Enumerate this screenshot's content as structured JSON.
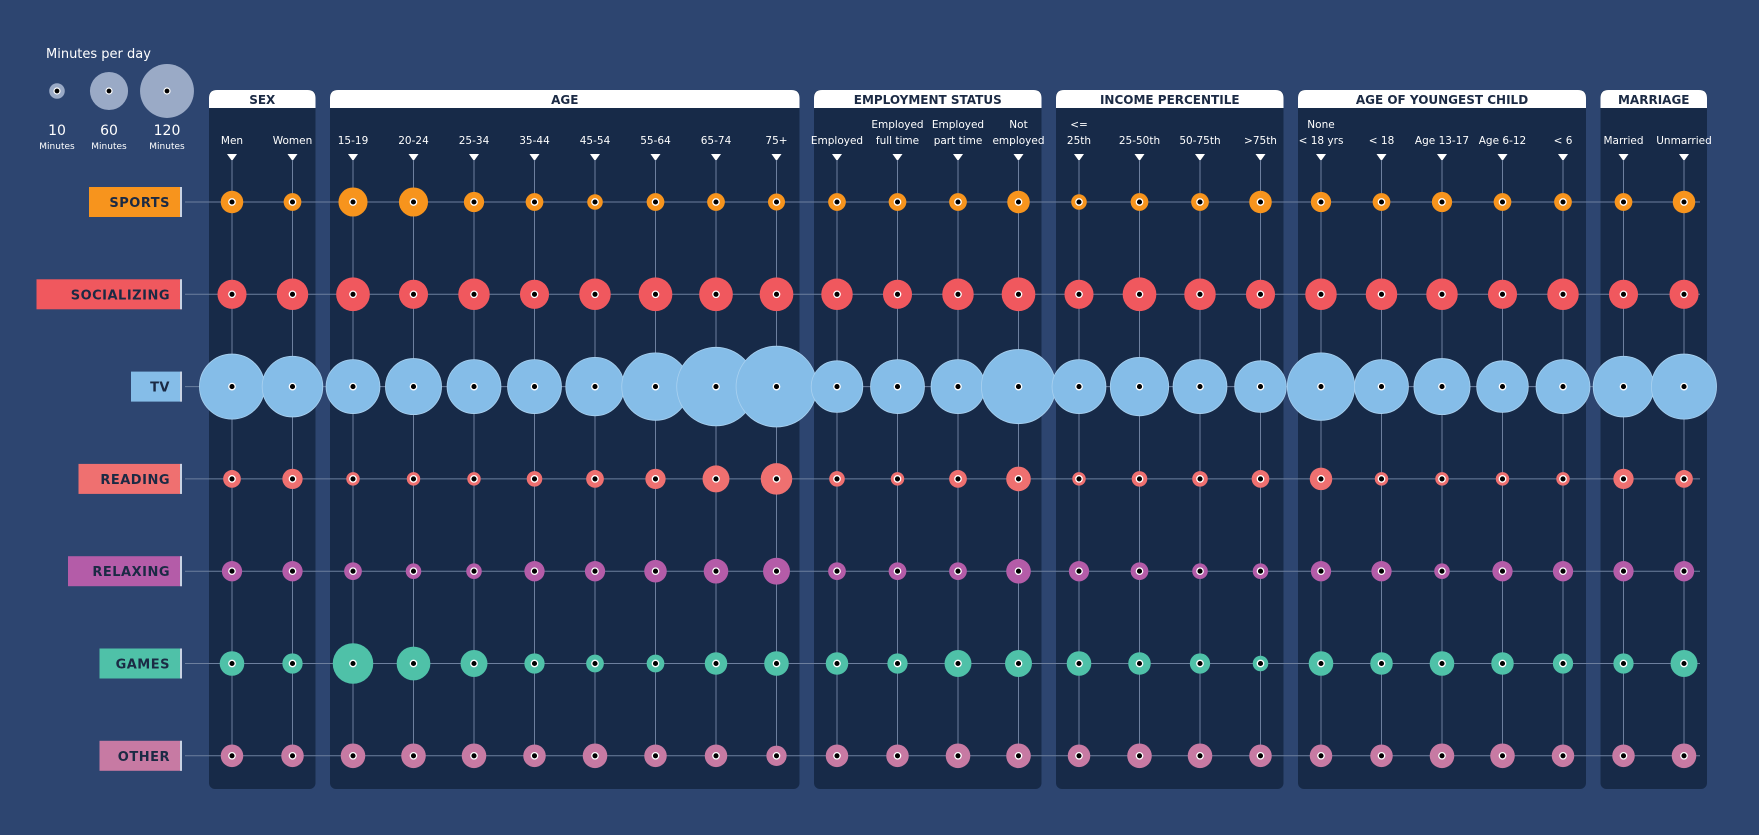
{
  "chart_data": {
    "type": "bubble",
    "size_legend": {
      "title": "Minutes per day",
      "items": [
        {
          "value": 10,
          "label": "10",
          "unit": "Minutes"
        },
        {
          "value": 60,
          "label": "60",
          "unit": "Minutes"
        },
        {
          "value": 120,
          "label": "120",
          "unit": "Minutes"
        }
      ]
    },
    "groups": [
      {
        "title": "SEX",
        "categories": [
          [
            "Men"
          ],
          [
            "Women"
          ]
        ]
      },
      {
        "title": "AGE",
        "categories": [
          [
            "15-19"
          ],
          [
            "20-24"
          ],
          [
            "25-34"
          ],
          [
            "35-44"
          ],
          [
            "45-54"
          ],
          [
            "55-64"
          ],
          [
            "65-74"
          ],
          [
            "75+"
          ]
        ]
      },
      {
        "title": "EMPLOYMENT STATUS",
        "categories": [
          [
            "Employed"
          ],
          [
            "Employed",
            "full time"
          ],
          [
            "Employed",
            "part time"
          ],
          [
            "Not",
            "employed"
          ]
        ]
      },
      {
        "title": "INCOME PERCENTILE",
        "categories": [
          [
            "<=",
            "25th"
          ],
          [
            "25-50th"
          ],
          [
            "50-75th"
          ],
          [
            ">75th"
          ]
        ]
      },
      {
        "title": "AGE OF YOUNGEST CHILD",
        "categories": [
          [
            "None",
            "< 18 yrs"
          ],
          [
            "< 18"
          ],
          [
            "Age 13-17"
          ],
          [
            "Age 6-12"
          ],
          [
            "< 6"
          ]
        ]
      },
      {
        "title": "MARRIAGE",
        "categories": [
          [
            "Married"
          ],
          [
            "Unmarried"
          ]
        ]
      }
    ],
    "series": [
      {
        "name": "SPORTS",
        "color": "#f7941d",
        "values": [
          21,
          13,
          35,
          35,
          17,
          13,
          10,
          13,
          13,
          12,
          13,
          13,
          13,
          21,
          10,
          13,
          13,
          21,
          17,
          13,
          17,
          13,
          13,
          13,
          21
        ]
      },
      {
        "name": "SOCIALIZING",
        "color": "#f0585e",
        "values": [
          35,
          41,
          47,
          35,
          41,
          35,
          41,
          47,
          47,
          47,
          41,
          35,
          41,
          47,
          35,
          47,
          41,
          35,
          41,
          41,
          41,
          35,
          41,
          35,
          35
        ]
      },
      {
        "name": "TV",
        "color": "#85bde8",
        "values": [
          175,
          152,
          120,
          130,
          120,
          120,
          141,
          188,
          255,
          270,
          110,
          120,
          120,
          227,
          120,
          141,
          120,
          110,
          188,
          120,
          130,
          110,
          120,
          152,
          175
        ]
      },
      {
        "name": "READING",
        "color": "#ef7070",
        "values": [
          13,
          17,
          7.5,
          7.5,
          7.5,
          10,
          13,
          17,
          30,
          41,
          10,
          7.5,
          13,
          25,
          7.5,
          10,
          10,
          13,
          21,
          7.5,
          7.5,
          7.5,
          7.5,
          17,
          13
        ]
      },
      {
        "name": "RELAXING",
        "color": "#b45ca8",
        "values": [
          17,
          17,
          13,
          10,
          10,
          17,
          17,
          21,
          25,
          30,
          13,
          13,
          13,
          25,
          17,
          13,
          10,
          10,
          17,
          17,
          10,
          17,
          17,
          17,
          17
        ]
      },
      {
        "name": "GAMES",
        "color": "#4fc1a8",
        "values": [
          25,
          17,
          68,
          47,
          30,
          17,
          13,
          13,
          21,
          25,
          21,
          17,
          30,
          30,
          25,
          21,
          17,
          10,
          25,
          21,
          25,
          21,
          17,
          17,
          30
        ]
      },
      {
        "name": "OTHER",
        "color": "#c77aa3",
        "values": [
          21,
          21,
          25,
          25,
          25,
          21,
          25,
          21,
          21,
          17,
          21,
          21,
          25,
          25,
          21,
          25,
          25,
          21,
          21,
          21,
          25,
          25,
          21,
          21,
          25
        ]
      }
    ],
    "colors": {
      "background": "#2d4570",
      "panel": "#172a48",
      "legend_bubble": "#9aaac6",
      "label_text": "#1b2a44"
    }
  }
}
